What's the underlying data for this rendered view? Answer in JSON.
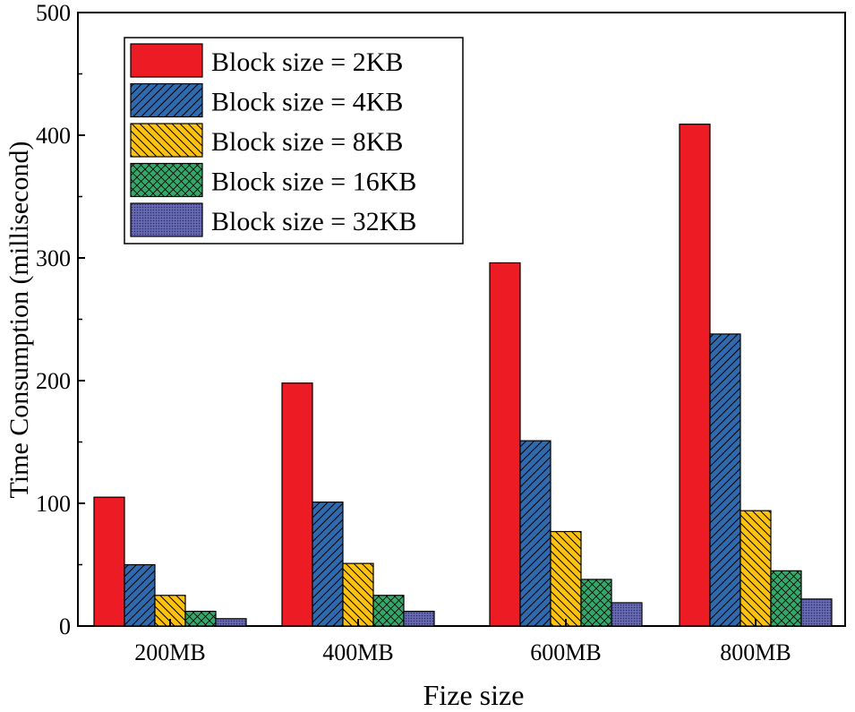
{
  "chart_data": {
    "type": "bar",
    "title": "",
    "xlabel": "Fize size",
    "ylabel": "Time Consumption (millisecond)",
    "ylim": [
      0,
      500
    ],
    "yticks": [
      "0",
      "100",
      "200",
      "300",
      "400",
      "500"
    ],
    "categories": [
      "200MB",
      "400MB",
      "600MB",
      "800MB"
    ],
    "legend_position": "top-left",
    "series": [
      {
        "name": "Block size = 2KB",
        "values": [
          105,
          198,
          296,
          409
        ],
        "color": "#ed1c24",
        "pattern": "solid"
      },
      {
        "name": "Block size = 4KB",
        "values": [
          50,
          101,
          151,
          238
        ],
        "color": "#2e6aad",
        "pattern": "diagonal"
      },
      {
        "name": "Block size = 8KB",
        "values": [
          25,
          51,
          77,
          94
        ],
        "color": "#fdc20f",
        "pattern": "back-diagonal"
      },
      {
        "name": "Block size = 16KB",
        "values": [
          12,
          25,
          38,
          45
        ],
        "color": "#33a86a",
        "pattern": "crosshatch"
      },
      {
        "name": "Block size = 32KB",
        "values": [
          6,
          12,
          19,
          22
        ],
        "color": "#5d5fa8",
        "pattern": "dots"
      }
    ]
  }
}
